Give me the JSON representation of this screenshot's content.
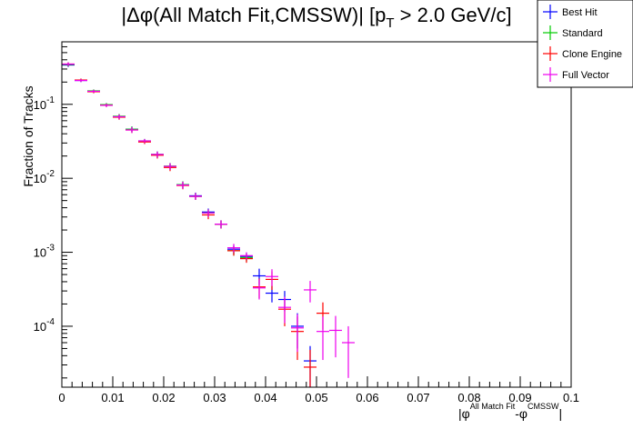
{
  "chart_data": {
    "type": "scatter",
    "title_prefix": "|Δφ(All Match Fit,CMSSW)| [p",
    "title_sub": "T",
    "title_suffix": " > 2.0 GeV/c]",
    "ylabel": "Fraction of Tracks",
    "xlabel_parts": [
      "|φ",
      "All Match Fit",
      "-φ",
      "CMSSW",
      "|"
    ],
    "xlim": [
      0,
      0.1
    ],
    "ylim": [
      1.5e-05,
      0.7
    ],
    "yscale": "log",
    "x_tick_labels": [
      "0",
      "0.01",
      "0.02",
      "0.03",
      "0.04",
      "0.05",
      "0.06",
      "0.07",
      "0.08",
      "0.09",
      "0.1"
    ],
    "x_tick_values": [
      0,
      0.01,
      0.02,
      0.03,
      0.04,
      0.05,
      0.06,
      0.07,
      0.08,
      0.09,
      0.1
    ],
    "y_tick_labels": [
      {
        "base": "10",
        "exp": "-4",
        "value": 0.0001
      },
      {
        "base": "10",
        "exp": "-3",
        "value": 0.001
      },
      {
        "base": "10",
        "exp": "-2",
        "value": 0.01
      },
      {
        "base": "10",
        "exp": "-1",
        "value": 0.1
      }
    ],
    "bin_width": 0.0025,
    "series": [
      {
        "name": "Best Hit",
        "color": "#0000ff",
        "points": [
          [
            0.00125,
            0.34,
            0.02
          ],
          [
            0.00375,
            0.21,
            0.01
          ],
          [
            0.00625,
            0.15,
            0.007
          ],
          [
            0.00875,
            0.098,
            0.005
          ],
          [
            0.01125,
            0.068,
            0.005
          ],
          [
            0.01375,
            0.046,
            0.004
          ],
          [
            0.01625,
            0.032,
            0.002
          ],
          [
            0.01875,
            0.021,
            0.002
          ],
          [
            0.02125,
            0.0145,
            0.0015
          ],
          [
            0.02375,
            0.0082,
            0.0009
          ],
          [
            0.02625,
            0.0058,
            0.0006
          ],
          [
            0.02875,
            0.0035,
            0.0004
          ],
          [
            0.03125,
            0.0024,
            0.0003
          ],
          [
            0.03375,
            0.0011,
            0.00015
          ],
          [
            0.03625,
            0.00088,
            0.0001
          ],
          [
            0.03875,
            0.00048,
            0.00012
          ],
          [
            0.04125,
            0.00028,
            7e-05
          ],
          [
            0.04375,
            0.00023,
            7e-05
          ],
          [
            0.04625,
            0.0001,
            5e-05
          ],
          [
            0.04875,
            3.4e-05,
            2e-05
          ]
        ]
      },
      {
        "name": "Standard",
        "color": "#00cc00",
        "points": [
          [
            0.00125,
            0.345,
            0.02
          ],
          [
            0.00375,
            0.212,
            0.01
          ],
          [
            0.00625,
            0.152,
            0.007
          ],
          [
            0.00875,
            0.099,
            0.005
          ],
          [
            0.01125,
            0.069,
            0.005
          ],
          [
            0.01375,
            0.046,
            0.004
          ],
          [
            0.01625,
            0.032,
            0.002
          ],
          [
            0.01875,
            0.021,
            0.002
          ],
          [
            0.02125,
            0.0146,
            0.0015
          ],
          [
            0.02375,
            0.0082,
            0.0009
          ],
          [
            0.02625,
            0.0057,
            0.0006
          ],
          [
            0.02875,
            0.0034,
            0.0004
          ],
          [
            0.03125,
            0.0024,
            0.0003
          ],
          [
            0.03375,
            0.00105,
            0.00015
          ],
          [
            0.03625,
            0.00085,
            0.0001
          ]
        ]
      },
      {
        "name": "Clone Engine",
        "color": "#ff0000",
        "points": [
          [
            0.00125,
            0.35,
            0.02
          ],
          [
            0.00375,
            0.213,
            0.01
          ],
          [
            0.00625,
            0.148,
            0.007
          ],
          [
            0.00875,
            0.097,
            0.005
          ],
          [
            0.01125,
            0.067,
            0.005
          ],
          [
            0.01375,
            0.045,
            0.004
          ],
          [
            0.01625,
            0.031,
            0.002
          ],
          [
            0.01875,
            0.0205,
            0.002
          ],
          [
            0.02125,
            0.014,
            0.0015
          ],
          [
            0.02375,
            0.008,
            0.0009
          ],
          [
            0.02625,
            0.0057,
            0.0006
          ],
          [
            0.02875,
            0.0032,
            0.0004
          ],
          [
            0.03125,
            0.0024,
            0.0003
          ],
          [
            0.03375,
            0.00105,
            0.00015
          ],
          [
            0.03625,
            0.00082,
            0.0001
          ],
          [
            0.03875,
            0.00034,
            0.0001
          ],
          [
            0.04125,
            0.00043,
            0.00012
          ],
          [
            0.04375,
            0.00017,
            7e-05
          ],
          [
            0.04625,
            8.5e-05,
            5e-05
          ],
          [
            0.04875,
            2.8e-05,
            2e-05
          ],
          [
            0.05125,
            0.00015,
            6e-05
          ]
        ]
      },
      {
        "name": "Full Vector",
        "color": "#ee00ee",
        "points": [
          [
            0.00125,
            0.35,
            0.02
          ],
          [
            0.00375,
            0.21,
            0.01
          ],
          [
            0.00625,
            0.15,
            0.007
          ],
          [
            0.00875,
            0.097,
            0.005
          ],
          [
            0.01125,
            0.068,
            0.005
          ],
          [
            0.01375,
            0.045,
            0.004
          ],
          [
            0.01625,
            0.032,
            0.002
          ],
          [
            0.01875,
            0.021,
            0.002
          ],
          [
            0.02125,
            0.0145,
            0.0015
          ],
          [
            0.02375,
            0.0081,
            0.0009
          ],
          [
            0.02625,
            0.0057,
            0.0006
          ],
          [
            0.02875,
            0.0034,
            0.0004
          ],
          [
            0.03125,
            0.0024,
            0.0003
          ],
          [
            0.03375,
            0.00115,
            0.00015
          ],
          [
            0.03625,
            0.0009,
            0.0001
          ],
          [
            0.03875,
            0.00033,
            0.0001
          ],
          [
            0.04125,
            0.00047,
            0.00012
          ],
          [
            0.04375,
            0.00018,
            7e-05
          ],
          [
            0.04625,
            9.5e-05,
            5e-05
          ],
          [
            0.04875,
            0.00031,
            0.0001
          ],
          [
            0.05125,
            8.5e-05,
            5e-05
          ],
          [
            0.05375,
            8.8e-05,
            5e-05
          ],
          [
            0.05625,
            6e-05,
            4e-05
          ]
        ]
      }
    ],
    "legend": [
      "Best Hit",
      "Standard",
      "Clone Engine",
      "Full Vector"
    ],
    "legend_position": "top-right"
  }
}
